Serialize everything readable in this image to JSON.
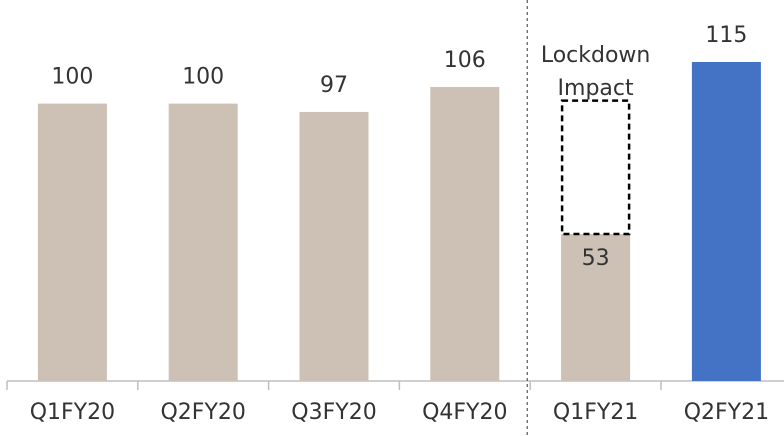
{
  "chart_data": {
    "type": "bar",
    "categories": [
      "Q1FY20",
      "Q2FY20",
      "Q3FY20",
      "Q4FY20",
      "Q1FY21",
      "Q2FY21"
    ],
    "values": [
      100,
      100,
      97,
      106,
      53,
      115
    ],
    "colors": [
      "#cdc0b4",
      "#cdc0b4",
      "#cdc0b4",
      "#cdc0b4",
      "#cdc0b4",
      "#4472c4"
    ],
    "ylim": [
      0,
      115
    ],
    "annotation": [
      "Lockdown",
      "Impact"
    ]
  }
}
